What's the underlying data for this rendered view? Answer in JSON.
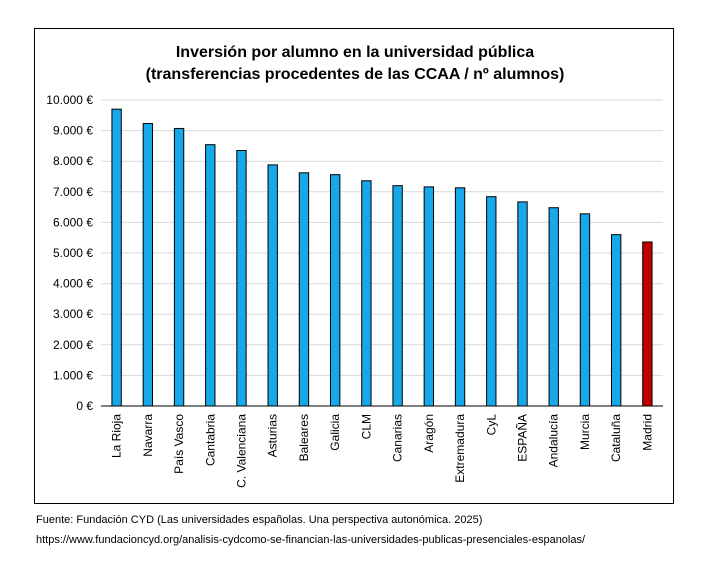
{
  "chart_data": {
    "type": "bar",
    "title_lines": [
      "Inversión por alumno en la universidad pública",
      "(transferencias procedentes de las CCAA / nº alumnos)"
    ],
    "categories": [
      "La Rioja",
      "Navarra",
      "País Vasco",
      "Cantabria",
      "C. Valenciana",
      "Asturias",
      "Baleares",
      "Galicia",
      "CLM",
      "Canarias",
      "Aragón",
      "Extremadura",
      "CyL",
      "ESPAÑA",
      "Andalucía",
      "Murcia",
      "Cataluña",
      "Madrid"
    ],
    "values": [
      9700,
      9230,
      9070,
      8540,
      8350,
      7880,
      7620,
      7560,
      7360,
      7200,
      7160,
      7130,
      6840,
      6670,
      6480,
      6280,
      5600,
      5360
    ],
    "highlight_category": "Madrid",
    "colors": {
      "bar": "#16a8e8",
      "highlight": "#c00000",
      "grid": "#d9d9d9"
    },
    "ylim": [
      0,
      10000
    ],
    "yticks": [
      0,
      1000,
      2000,
      3000,
      4000,
      5000,
      6000,
      7000,
      8000,
      9000,
      10000
    ],
    "ytick_labels": [
      "0 €",
      "1.000 €",
      "2.000 €",
      "3.000 €",
      "4.000 €",
      "5.000 €",
      "6.000 €",
      "7.000 €",
      "8.000 €",
      "9.000 €",
      "10.000 €"
    ],
    "xlabel": "",
    "ylabel": "",
    "grid": true,
    "legend": false
  },
  "footer": {
    "source": "Fuente: Fundación CYD (Las universidades españolas. Una perspectiva autonómica. 2025)",
    "url": "https://www.fundacioncyd.org/analisis-cydcomo-se-financian-las-universidades-publicas-presenciales-espanolas/"
  }
}
